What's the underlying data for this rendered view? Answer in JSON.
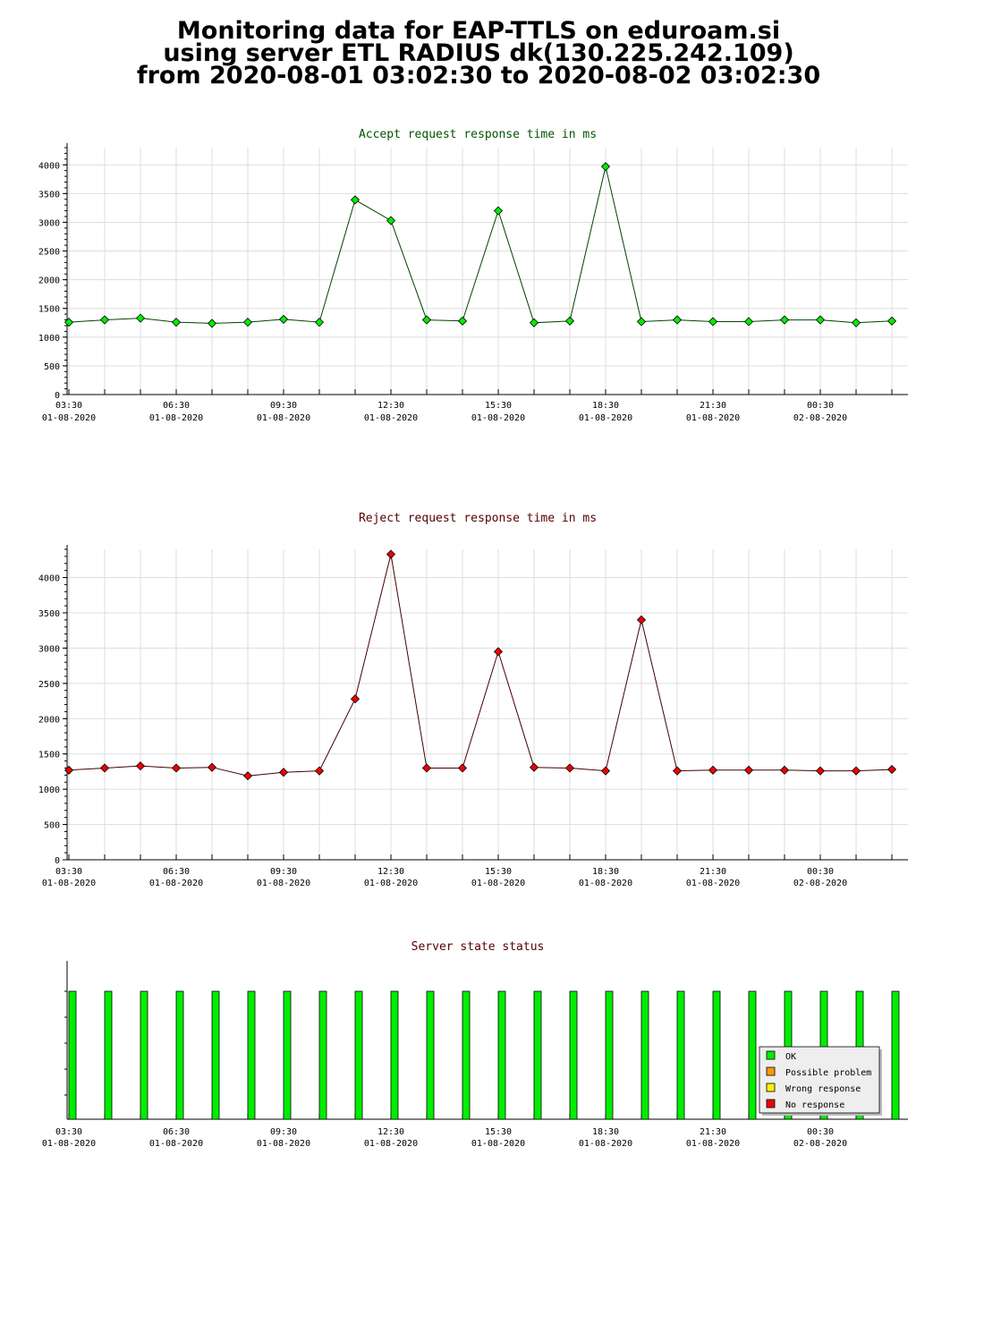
{
  "header": {
    "line1": "Monitoring data for EAP-TTLS on eduroam.si",
    "line2": "using server ETL RADIUS dk(130.225.242.109)",
    "line3": "from 2020-08-01 03:02:30 to 2020-08-02 03:02:30"
  },
  "x_ticks": [
    {
      "time": "03:30",
      "date": "01-08-2020"
    },
    {
      "time": "06:30",
      "date": "01-08-2020"
    },
    {
      "time": "09:30",
      "date": "01-08-2020"
    },
    {
      "time": "12:30",
      "date": "01-08-2020"
    },
    {
      "time": "15:30",
      "date": "01-08-2020"
    },
    {
      "time": "18:30",
      "date": "01-08-2020"
    },
    {
      "time": "21:30",
      "date": "01-08-2020"
    },
    {
      "time": "00:30",
      "date": "02-08-2020"
    }
  ],
  "chart_data": [
    {
      "type": "line",
      "title": "Accept request response time in ms",
      "color": "#00ee00",
      "line_color": "#004400",
      "title_color": "#005500",
      "ylim": [
        0,
        4300
      ],
      "yticks": [
        0,
        500,
        1000,
        1500,
        2000,
        2500,
        3000,
        3500,
        4000
      ],
      "x_start": "2020-08-01 03:30",
      "x_step_minutes": 60,
      "values": [
        1260,
        1300,
        1330,
        1260,
        1240,
        1260,
        1310,
        1260,
        3390,
        3030,
        1300,
        1280,
        3200,
        1250,
        1280,
        3970,
        1270,
        1300,
        1270,
        1270,
        1300,
        1300,
        1250,
        1280
      ],
      "grid": true
    },
    {
      "type": "line",
      "title": "Reject request response time in ms",
      "color": "#ee0000",
      "line_color": "#440000",
      "title_color": "#550000",
      "ylim": [
        0,
        4400
      ],
      "yticks": [
        0,
        500,
        1000,
        1500,
        2000,
        2500,
        3000,
        3500,
        4000
      ],
      "x_start": "2020-08-01 03:30",
      "x_step_minutes": 60,
      "values": [
        1270,
        1300,
        1330,
        1300,
        1310,
        1190,
        1240,
        1260,
        2280,
        4330,
        1300,
        1300,
        2950,
        1310,
        1300,
        1260,
        3400,
        1260,
        1270,
        1270,
        1270,
        1260,
        1260,
        1280
      ],
      "grid": true
    },
    {
      "type": "bar",
      "title": "Server state status",
      "title_color": "#550000",
      "x_start": "2020-08-01 03:30",
      "x_step_minutes": 60,
      "values": [
        "OK",
        "OK",
        "OK",
        "OK",
        "OK",
        "OK",
        "OK",
        "OK",
        "OK",
        "OK",
        "OK",
        "OK",
        "OK",
        "OK",
        "OK",
        "OK",
        "OK",
        "OK",
        "OK",
        "OK",
        "OK",
        "OK",
        "OK",
        "OK"
      ],
      "legend_position": "bottom-right",
      "legend": [
        {
          "label": "OK",
          "color": "#00ee00"
        },
        {
          "label": "Possible problem",
          "color": "#ff9900"
        },
        {
          "label": "Wrong response",
          "color": "#ffee00"
        },
        {
          "label": "No response",
          "color": "#ee0000"
        }
      ]
    }
  ]
}
